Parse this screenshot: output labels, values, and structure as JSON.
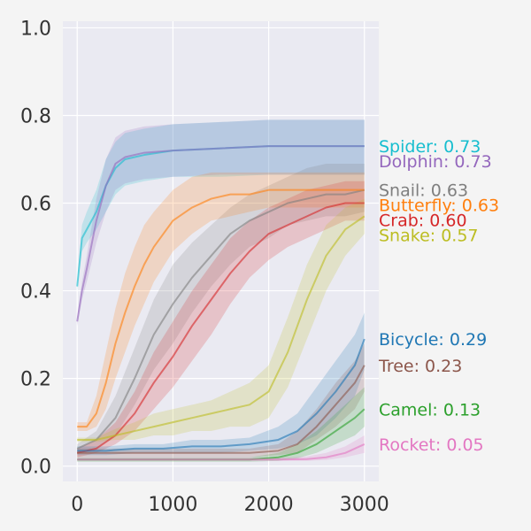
{
  "chart_data": {
    "type": "line",
    "title": "",
    "xlabel": "",
    "ylabel": "",
    "xlim": [
      -150,
      3150
    ],
    "ylim": [
      -0.035,
      1.015
    ],
    "x_ticks": [
      0,
      1000,
      2000,
      3000
    ],
    "x_tick_labels": [
      "0",
      "1000",
      "2000",
      "3000"
    ],
    "y_ticks": [
      0.0,
      0.2,
      0.4,
      0.6,
      0.8,
      1.0
    ],
    "y_tick_labels": [
      "0.0",
      "0.2",
      "0.4",
      "0.6",
      "0.8",
      "1.0"
    ],
    "grid": true,
    "legend_placement": "right",
    "series": [
      {
        "name": "Spider",
        "label": "Spider: 0.73",
        "color": "#17becf",
        "x": [
          0,
          50,
          100,
          200,
          300,
          400,
          500,
          700,
          1000,
          1500,
          2000,
          2500,
          3000
        ],
        "y": [
          0.41,
          0.52,
          0.54,
          0.58,
          0.64,
          0.68,
          0.7,
          0.71,
          0.72,
          0.725,
          0.73,
          0.73,
          0.73
        ],
        "lo": [
          0.4,
          0.49,
          0.51,
          0.54,
          0.58,
          0.62,
          0.64,
          0.65,
          0.66,
          0.66,
          0.665,
          0.665,
          0.665
        ],
        "hi": [
          0.42,
          0.55,
          0.58,
          0.63,
          0.7,
          0.74,
          0.76,
          0.77,
          0.78,
          0.785,
          0.79,
          0.79,
          0.79
        ]
      },
      {
        "name": "Dolphin",
        "label": "Dolphin: 0.73",
        "color": "#9467bd",
        "x": [
          0,
          50,
          100,
          200,
          300,
          400,
          500,
          700,
          1000,
          1500,
          2000,
          2500,
          3000
        ],
        "y": [
          0.33,
          0.4,
          0.45,
          0.56,
          0.64,
          0.69,
          0.705,
          0.715,
          0.72,
          0.725,
          0.73,
          0.73,
          0.73
        ],
        "lo": [
          0.32,
          0.38,
          0.42,
          0.51,
          0.58,
          0.63,
          0.645,
          0.655,
          0.66,
          0.665,
          0.665,
          0.665,
          0.665
        ],
        "hi": [
          0.34,
          0.42,
          0.48,
          0.61,
          0.7,
          0.75,
          0.765,
          0.775,
          0.78,
          0.785,
          0.79,
          0.79,
          0.79
        ]
      },
      {
        "name": "Snail",
        "label": "Snail: 0.63",
        "color": "#7f7f7f",
        "x": [
          0,
          200,
          400,
          600,
          800,
          1000,
          1200,
          1400,
          1600,
          1800,
          2000,
          2200,
          2400,
          2600,
          2800,
          3000
        ],
        "y": [
          0.04,
          0.06,
          0.11,
          0.2,
          0.3,
          0.37,
          0.43,
          0.48,
          0.53,
          0.56,
          0.58,
          0.6,
          0.61,
          0.62,
          0.62,
          0.63
        ],
        "lo": [
          0.03,
          0.04,
          0.07,
          0.14,
          0.22,
          0.28,
          0.35,
          0.41,
          0.46,
          0.5,
          0.52,
          0.55,
          0.56,
          0.57,
          0.57,
          0.58
        ],
        "hi": [
          0.05,
          0.08,
          0.16,
          0.27,
          0.38,
          0.46,
          0.51,
          0.55,
          0.59,
          0.62,
          0.64,
          0.66,
          0.68,
          0.69,
          0.69,
          0.69
        ]
      },
      {
        "name": "Butterfly",
        "label": "Butterfly: 0.63",
        "color": "#ff7f0e",
        "x": [
          0,
          100,
          200,
          300,
          400,
          500,
          600,
          700,
          800,
          1000,
          1200,
          1400,
          1600,
          1800,
          2000,
          2500,
          3000
        ],
        "y": [
          0.09,
          0.09,
          0.12,
          0.19,
          0.28,
          0.35,
          0.41,
          0.46,
          0.5,
          0.56,
          0.59,
          0.61,
          0.62,
          0.62,
          0.63,
          0.63,
          0.63
        ],
        "lo": [
          0.08,
          0.08,
          0.09,
          0.13,
          0.2,
          0.26,
          0.32,
          0.37,
          0.42,
          0.49,
          0.53,
          0.56,
          0.57,
          0.58,
          0.59,
          0.59,
          0.59
        ],
        "hi": [
          0.1,
          0.1,
          0.16,
          0.26,
          0.36,
          0.44,
          0.5,
          0.55,
          0.58,
          0.63,
          0.66,
          0.67,
          0.67,
          0.67,
          0.67,
          0.67,
          0.67
        ]
      },
      {
        "name": "Crab",
        "label": "Crab: 0.60",
        "color": "#d62728",
        "x": [
          0,
          200,
          400,
          600,
          800,
          1000,
          1200,
          1400,
          1600,
          1800,
          2000,
          2200,
          2400,
          2600,
          2800,
          3000
        ],
        "y": [
          0.03,
          0.04,
          0.07,
          0.12,
          0.19,
          0.25,
          0.32,
          0.38,
          0.44,
          0.49,
          0.53,
          0.55,
          0.57,
          0.59,
          0.6,
          0.6
        ],
        "lo": [
          0.02,
          0.03,
          0.05,
          0.08,
          0.13,
          0.18,
          0.24,
          0.3,
          0.37,
          0.43,
          0.47,
          0.5,
          0.52,
          0.54,
          0.56,
          0.56
        ],
        "hi": [
          0.04,
          0.06,
          0.1,
          0.17,
          0.26,
          0.33,
          0.4,
          0.46,
          0.52,
          0.56,
          0.59,
          0.61,
          0.63,
          0.64,
          0.65,
          0.65
        ]
      },
      {
        "name": "Snake",
        "label": "Snake: 0.57",
        "color": "#bcbd22",
        "x": [
          0,
          200,
          400,
          600,
          800,
          1000,
          1200,
          1400,
          1600,
          1800,
          2000,
          2200,
          2400,
          2600,
          2800,
          3000
        ],
        "y": [
          0.06,
          0.06,
          0.07,
          0.08,
          0.09,
          0.1,
          0.11,
          0.12,
          0.13,
          0.14,
          0.17,
          0.26,
          0.38,
          0.48,
          0.54,
          0.57
        ],
        "lo": [
          0.055,
          0.055,
          0.06,
          0.06,
          0.07,
          0.07,
          0.08,
          0.08,
          0.09,
          0.09,
          0.11,
          0.18,
          0.29,
          0.4,
          0.48,
          0.53
        ],
        "hi": [
          0.065,
          0.065,
          0.085,
          0.1,
          0.12,
          0.13,
          0.14,
          0.15,
          0.17,
          0.19,
          0.23,
          0.34,
          0.46,
          0.55,
          0.59,
          0.61
        ]
      },
      {
        "name": "Bicycle",
        "label": "Bicycle: 0.29",
        "color": "#1f77b4",
        "x": [
          0,
          300,
          600,
          900,
          1200,
          1500,
          1800,
          2100,
          2300,
          2500,
          2700,
          2900,
          3000
        ],
        "y": [
          0.035,
          0.035,
          0.04,
          0.04,
          0.045,
          0.045,
          0.05,
          0.06,
          0.08,
          0.12,
          0.17,
          0.23,
          0.29
        ],
        "lo": [
          0.025,
          0.025,
          0.03,
          0.03,
          0.03,
          0.03,
          0.035,
          0.04,
          0.05,
          0.07,
          0.11,
          0.16,
          0.22
        ],
        "hi": [
          0.045,
          0.045,
          0.05,
          0.05,
          0.06,
          0.06,
          0.065,
          0.09,
          0.12,
          0.18,
          0.24,
          0.3,
          0.35
        ]
      },
      {
        "name": "Tree",
        "label": "Tree: 0.23",
        "color": "#8c564b",
        "x": [
          0,
          300,
          600,
          900,
          1200,
          1500,
          1800,
          2100,
          2300,
          2500,
          2700,
          2900,
          3000
        ],
        "y": [
          0.03,
          0.03,
          0.03,
          0.03,
          0.03,
          0.03,
          0.03,
          0.035,
          0.05,
          0.09,
          0.14,
          0.19,
          0.23
        ],
        "lo": [
          0.02,
          0.02,
          0.02,
          0.02,
          0.02,
          0.02,
          0.02,
          0.025,
          0.03,
          0.06,
          0.09,
          0.13,
          0.17
        ],
        "hi": [
          0.04,
          0.04,
          0.04,
          0.04,
          0.04,
          0.04,
          0.04,
          0.05,
          0.08,
          0.13,
          0.19,
          0.24,
          0.28
        ]
      },
      {
        "name": "Camel",
        "label": "Camel: 0.13",
        "color": "#2ca02c",
        "x": [
          0,
          300,
          600,
          900,
          1200,
          1500,
          1800,
          2100,
          2300,
          2500,
          2700,
          2900,
          3000
        ],
        "y": [
          0.015,
          0.015,
          0.015,
          0.015,
          0.015,
          0.015,
          0.015,
          0.02,
          0.03,
          0.05,
          0.08,
          0.11,
          0.13
        ],
        "lo": [
          0.01,
          0.01,
          0.01,
          0.01,
          0.01,
          0.01,
          0.01,
          0.012,
          0.018,
          0.03,
          0.05,
          0.07,
          0.09
        ],
        "hi": [
          0.02,
          0.02,
          0.02,
          0.02,
          0.02,
          0.02,
          0.02,
          0.03,
          0.05,
          0.08,
          0.12,
          0.16,
          0.18
        ]
      },
      {
        "name": "Rocket",
        "label": "Rocket: 0.05",
        "color": "#e377c2",
        "x": [
          0,
          300,
          600,
          900,
          1200,
          1500,
          1800,
          2100,
          2400,
          2600,
          2800,
          3000
        ],
        "y": [
          0.015,
          0.015,
          0.015,
          0.015,
          0.015,
          0.015,
          0.015,
          0.015,
          0.016,
          0.02,
          0.03,
          0.05
        ],
        "lo": [
          0.012,
          0.012,
          0.012,
          0.012,
          0.012,
          0.012,
          0.012,
          0.012,
          0.012,
          0.014,
          0.02,
          0.03
        ],
        "hi": [
          0.02,
          0.02,
          0.02,
          0.02,
          0.02,
          0.02,
          0.02,
          0.02,
          0.022,
          0.03,
          0.045,
          0.07
        ]
      }
    ]
  }
}
